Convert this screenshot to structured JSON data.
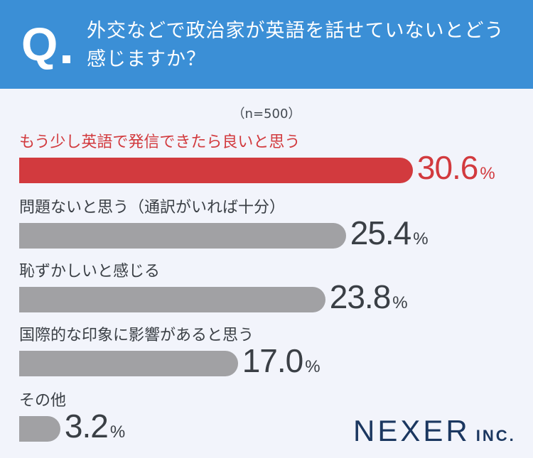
{
  "question": {
    "mark": "Q",
    "text": "外交などで政治家が英語を話せていないとどう感じますか？"
  },
  "sample_note": "（n=500）",
  "logo": {
    "main": "NEXER",
    "sub": "INC."
  },
  "colors": {
    "header": "#3b8fd6",
    "highlight": "#d23a3e",
    "bar": "#a1a1a4",
    "logo": "#1b3760"
  },
  "chart_data": {
    "type": "bar",
    "orientation": "horizontal",
    "categories": [
      "もう少し英語で発信できたら良いと思う",
      "問題ないと思う（通訳がいれば十分）",
      "恥ずかしいと感じる",
      "国際的な印象に影響があると思う",
      "その他"
    ],
    "values": [
      30.6,
      25.4,
      23.8,
      17.0,
      3.2
    ],
    "value_labels": [
      "30.6",
      "25.4",
      "23.8",
      "17.0",
      "3.2"
    ],
    "unit": "%",
    "highlight_index": 0
  }
}
